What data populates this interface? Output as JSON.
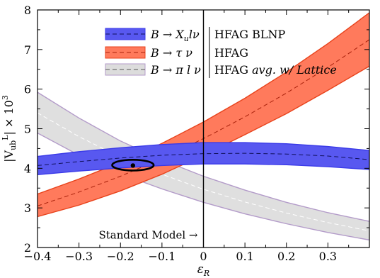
{
  "chart_data": {
    "type": "area",
    "title": "",
    "xlabel": "ε_R",
    "ylabel": "|V_ub^L| × 10^3",
    "xlim": [
      -0.4,
      0.4
    ],
    "ylim": [
      2,
      8
    ],
    "xticks": [
      -0.4,
      -0.3,
      -0.2,
      -0.1,
      0,
      0.1,
      0.2,
      0.3
    ],
    "xtick_labels": [
      "−0.4",
      "−0.3",
      "−0.2",
      "−0.1",
      "0",
      "0.1",
      "0.2",
      "0.3"
    ],
    "yticks": [
      2,
      3,
      4,
      5,
      6,
      7,
      8
    ],
    "ytick_labels": [
      "2",
      "3",
      "4",
      "5",
      "6",
      "7",
      "8"
    ],
    "grid": false,
    "legend_position": "top-center",
    "x": [
      -0.4,
      -0.3,
      -0.2,
      -0.1,
      0.0,
      0.1,
      0.2,
      0.3,
      0.4
    ],
    "series": [
      {
        "name": "B → X_u l ν",
        "source": "HFAG BLNP",
        "color": "#3a3ae8",
        "fill": "#5858f0",
        "center": [
          4.07,
          4.17,
          4.26,
          4.33,
          4.37,
          4.38,
          4.36,
          4.31,
          4.22
        ],
        "upper": [
          4.3,
          4.42,
          4.52,
          4.6,
          4.65,
          4.65,
          4.62,
          4.55,
          4.45
        ],
        "lower": [
          3.84,
          3.93,
          4.01,
          4.07,
          4.11,
          4.11,
          4.09,
          4.04,
          3.97
        ]
      },
      {
        "name": "B → τ ν",
        "source": "HFAG",
        "color": "#e8431c",
        "fill": "#ff7a5c",
        "center": [
          3.05,
          3.4,
          3.8,
          4.25,
          4.75,
          5.3,
          5.9,
          6.55,
          7.25
        ],
        "upper": [
          3.35,
          3.73,
          4.15,
          4.63,
          5.17,
          5.77,
          6.43,
          7.15,
          7.93
        ],
        "lower": [
          2.78,
          3.07,
          3.43,
          3.85,
          4.33,
          4.85,
          5.38,
          5.97,
          6.58
        ]
      },
      {
        "name": "B → π l ν",
        "source": "HFAG avg. w/ Lattice",
        "color": "#b39bc9",
        "fill": "#dcdcdc",
        "center": [
          5.4,
          4.8,
          4.28,
          3.85,
          3.47,
          3.15,
          2.87,
          2.63,
          2.42
        ],
        "upper": [
          5.92,
          5.27,
          4.69,
          4.21,
          3.8,
          3.45,
          3.14,
          2.88,
          2.66
        ],
        "lower": [
          4.89,
          4.33,
          3.86,
          3.48,
          3.14,
          2.85,
          2.6,
          2.38,
          2.19
        ]
      }
    ],
    "fit_point": {
      "x": -0.17,
      "y": 4.07
    },
    "fit_ellipse": {
      "x_center": -0.17,
      "y_center": 4.08,
      "x_halfwidth": 0.05,
      "y_halfwidth": 0.135
    },
    "sm_line_x": 0,
    "annotation": "Standard Model →"
  },
  "legend": {
    "items": [
      {
        "process": "B → X",
        "sub": "u",
        "tail": "lν",
        "source": "HFAG BLNP",
        "source_italic": ""
      },
      {
        "process": "B → τ ν",
        "sub": "",
        "tail": "",
        "source": "HFAG",
        "source_italic": ""
      },
      {
        "process": "B → π l ν",
        "sub": "",
        "tail": "",
        "source": "HFAG ",
        "source_italic": "avg. w/ Lattice"
      }
    ]
  },
  "ylabel_parts": {
    "open": "|V",
    "sub": "ub",
    "sup": "L",
    "close": "| × 10",
    "exp": "3"
  },
  "xlabel_parts": {
    "sym": "ε",
    "sub": "R"
  }
}
